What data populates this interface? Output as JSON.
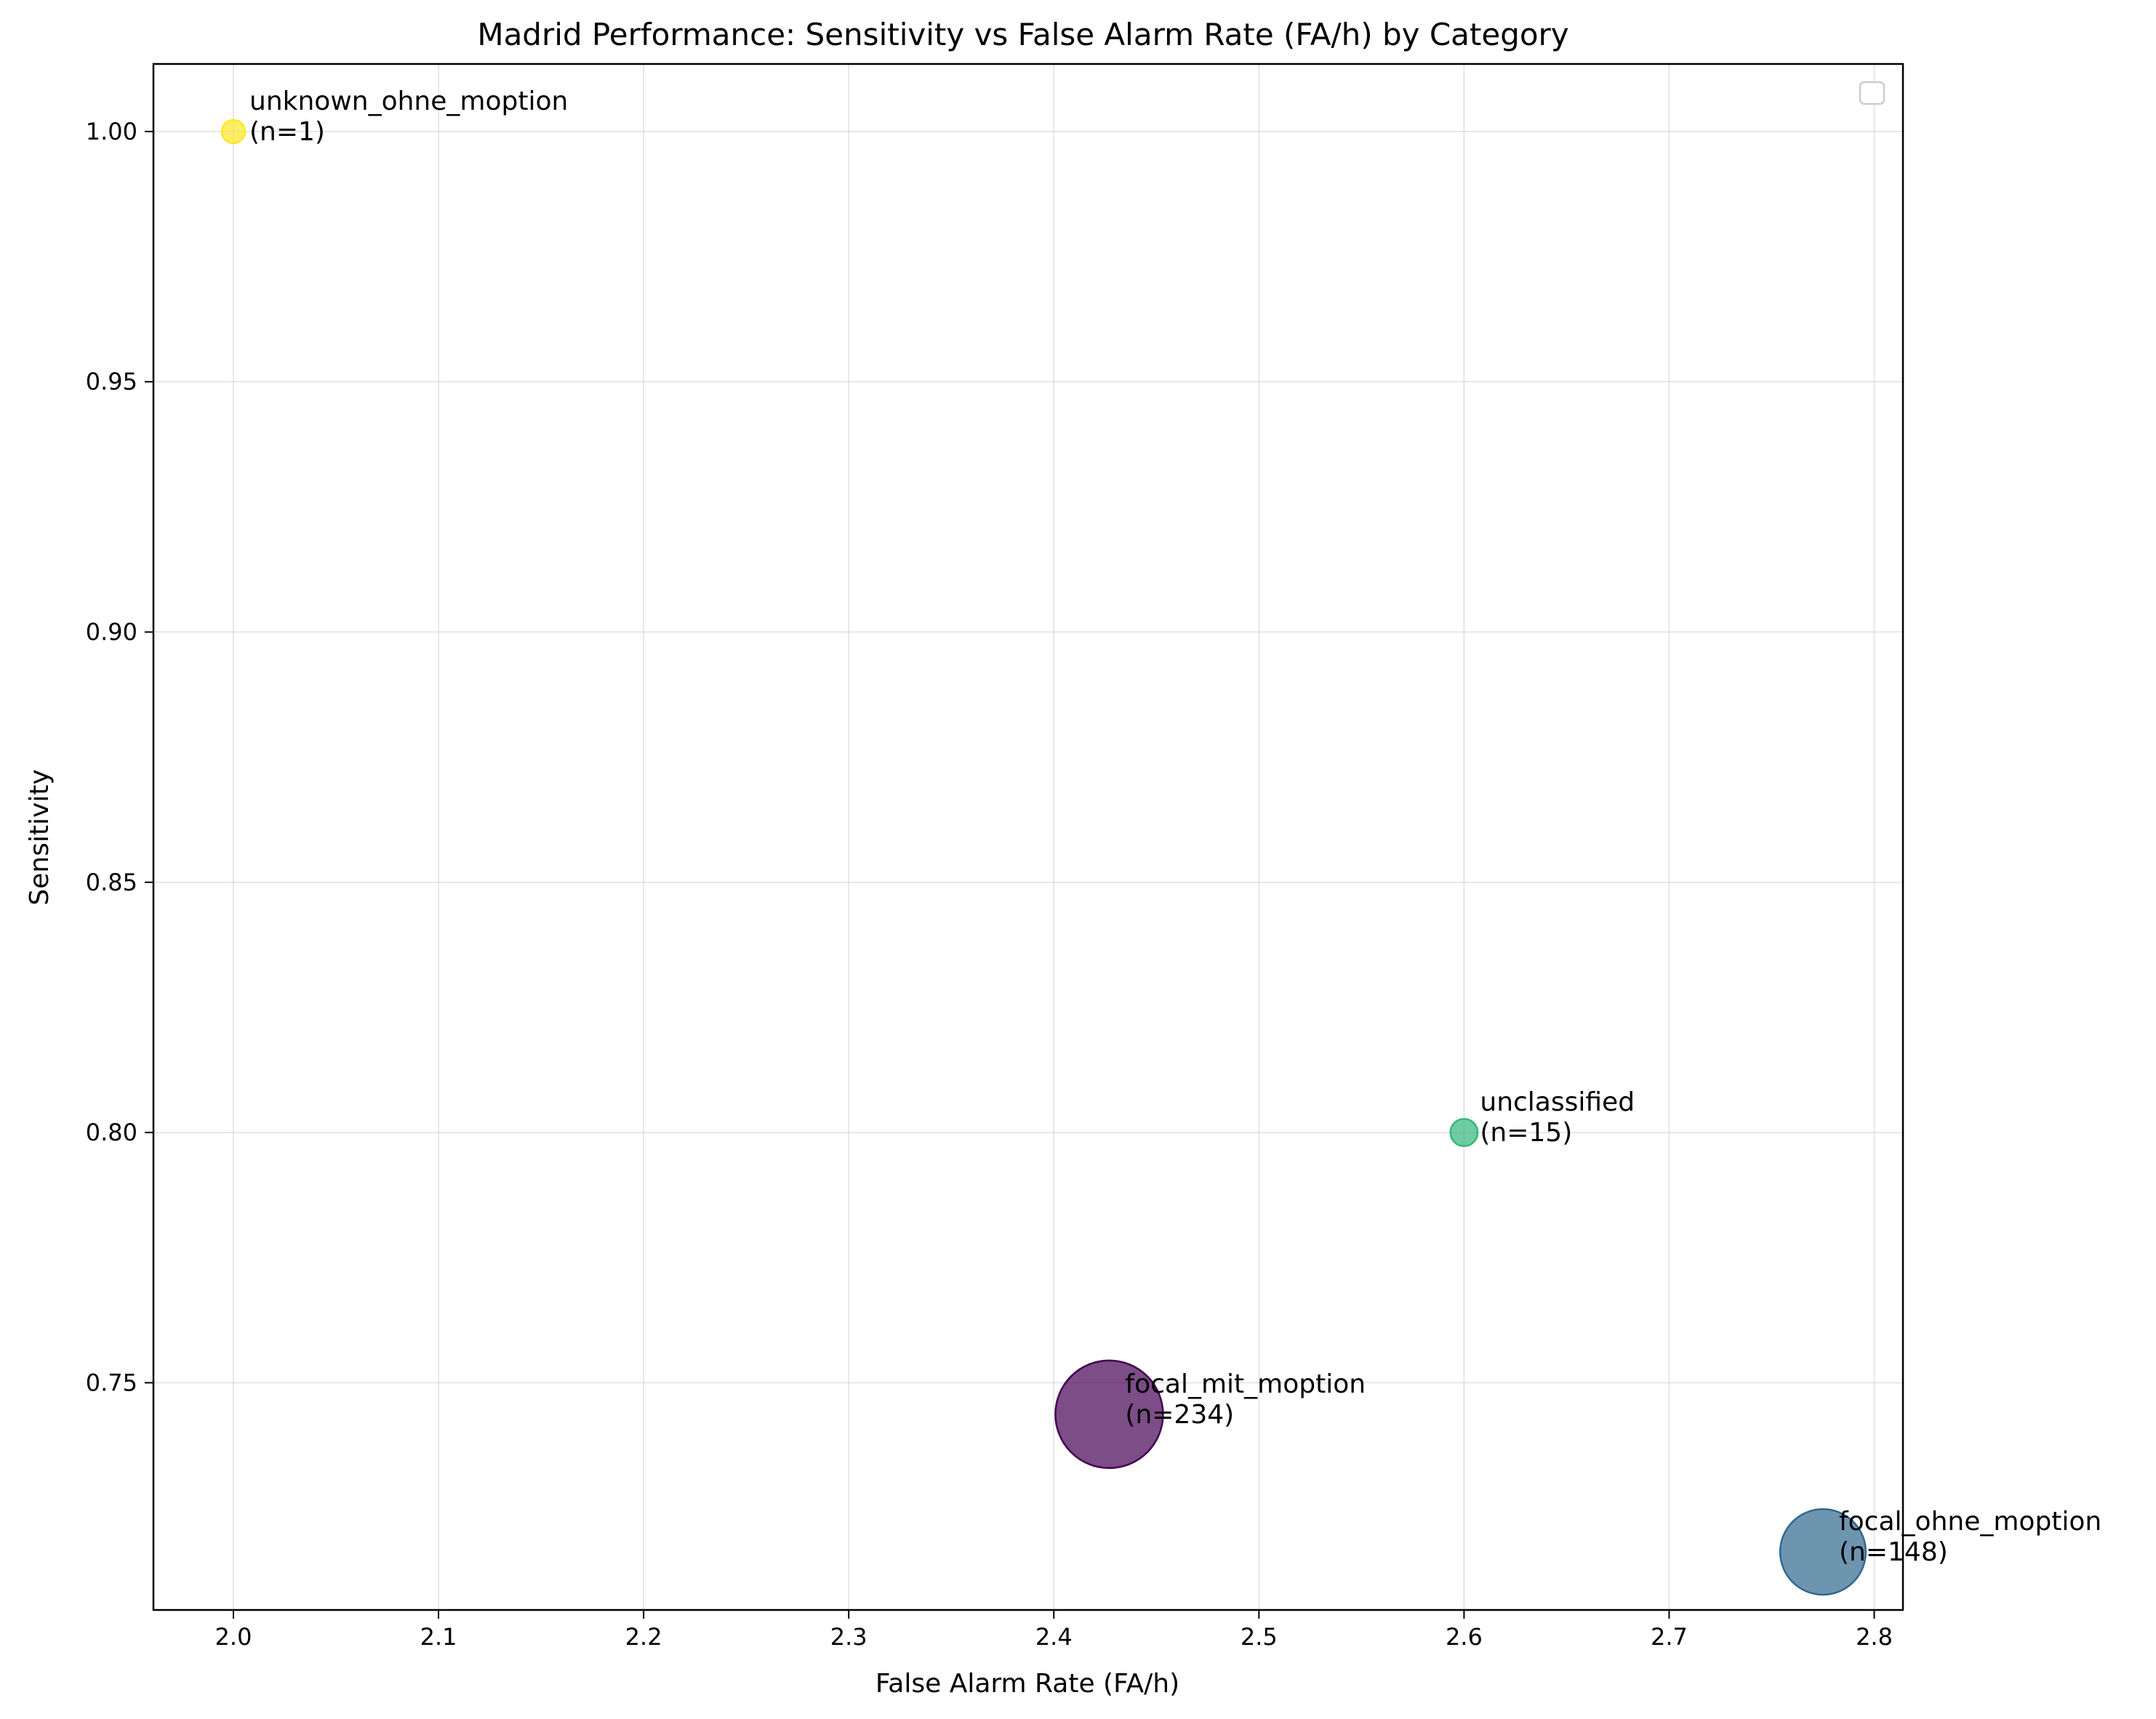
{
  "chart_data": {
    "type": "scatter",
    "title": "Madrid Performance: Sensitivity vs False Alarm Rate (FA/h) by Category",
    "xlabel": "False Alarm Rate (FA/h)",
    "ylabel": "Sensitivity",
    "xlim": [
      1.961,
      2.814
    ],
    "ylim": [
      0.7046,
      1.0135
    ],
    "xticks": [
      2.0,
      2.1,
      2.2,
      2.3,
      2.4,
      2.5,
      2.6,
      2.7,
      2.8
    ],
    "xtick_labels": [
      "2.0",
      "2.1",
      "2.2",
      "2.3",
      "2.4",
      "2.5",
      "2.6",
      "2.7",
      "2.8"
    ],
    "yticks": [
      0.75,
      0.8,
      0.85,
      0.9,
      0.95,
      1.0
    ],
    "ytick_labels": [
      "0.75",
      "0.80",
      "0.85",
      "0.90",
      "0.95",
      "1.00"
    ],
    "grid": true,
    "legend": "top-right (empty)",
    "points": [
      {
        "category": "unknown_ohne_moption",
        "n_label": "(n=1)",
        "n": 1,
        "x": 2.0,
        "y": 1.0,
        "color": "#fde725"
      },
      {
        "category": "unclassified",
        "n_label": "(n=15)",
        "n": 15,
        "x": 2.6,
        "y": 0.8,
        "color": "#35b779"
      },
      {
        "category": "focal_mit_moption",
        "n_label": "(n=234)",
        "n": 234,
        "x": 2.427,
        "y": 0.7437,
        "color": "#440154"
      },
      {
        "category": "focal_ohne_moption",
        "n_label": "(n=148)",
        "n": 148,
        "x": 2.775,
        "y": 0.7162,
        "color": "#31688e"
      }
    ]
  }
}
